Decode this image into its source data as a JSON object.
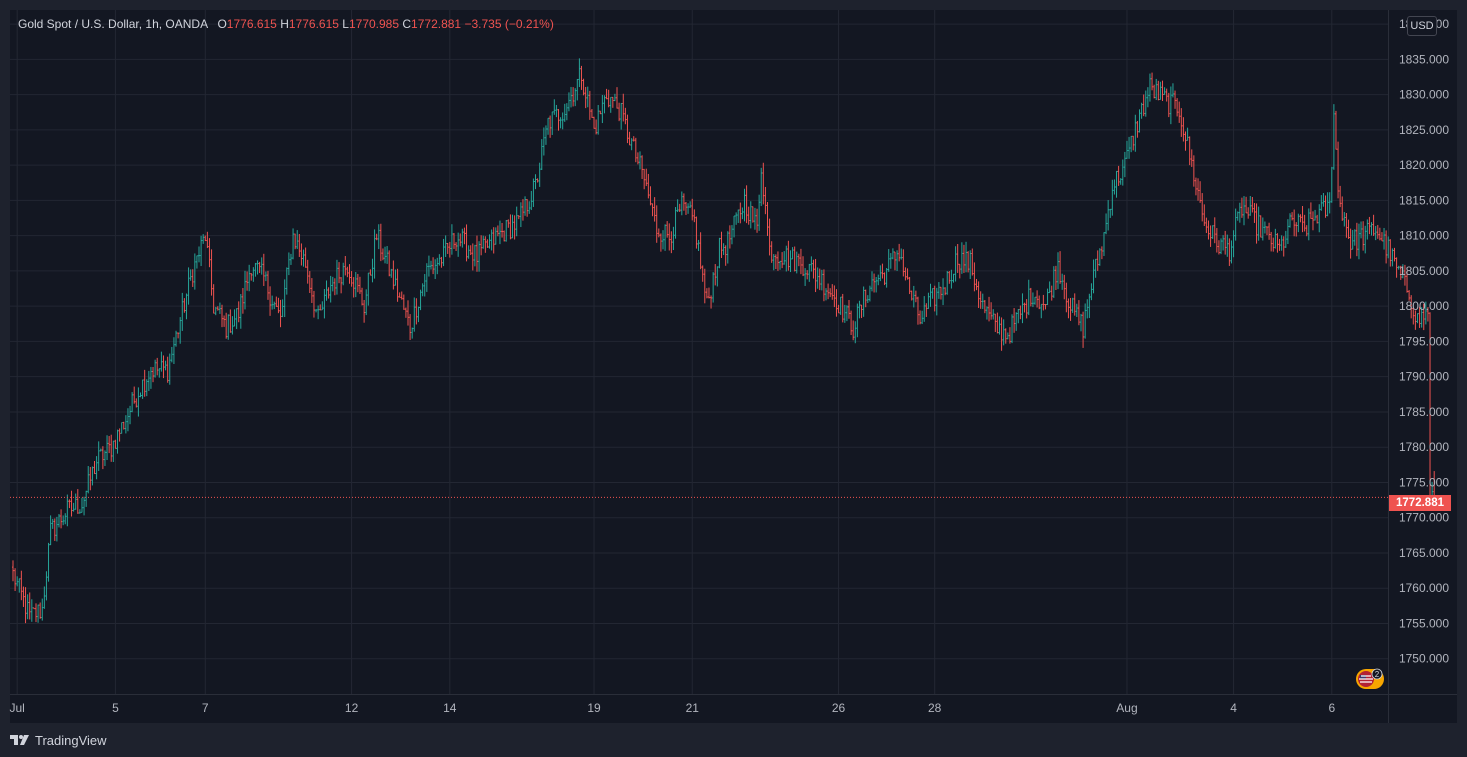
{
  "legend": {
    "symbol": "Gold Spot / U.S. Dollar, 1h, OANDA",
    "o_label": "O",
    "o_value": "1776.615",
    "h_label": "H",
    "h_value": "1776.615",
    "l_label": "L",
    "l_value": "1770.985",
    "c_label": "C",
    "c_value": "1772.881",
    "change": "−3.735 (−0.21%)"
  },
  "currency": "USD",
  "last_price": "1772.881",
  "branding": "TradingView",
  "event_badge_count": "2",
  "colors": {
    "up": "#26a69a",
    "down": "#ef5350",
    "background": "#131722",
    "frame": "#1e222d",
    "grid": "#232733",
    "text": "#b2b5be"
  },
  "chart_data": {
    "type": "ohlc",
    "instrument": "Gold Spot / U.S. Dollar",
    "interval": "1h",
    "source": "OANDA",
    "ylim": [
      1745.0,
      1842.0
    ],
    "y_ticks": [
      "1840.000",
      "1835.000",
      "1830.000",
      "1825.000",
      "1820.000",
      "1815.000",
      "1810.000",
      "1805.000",
      "1800.000",
      "1795.000",
      "1790.000",
      "1785.000",
      "1780.000",
      "1775.000",
      "1770.000",
      "1765.000",
      "1760.000",
      "1755.000",
      "1750.000"
    ],
    "x_ticks": [
      "Jul",
      "5",
      "7",
      "12",
      "14",
      "19",
      "21",
      "26",
      "28",
      "Aug",
      "4",
      "6"
    ],
    "last_price": 1772.881,
    "x_start": "Jun 29",
    "bars_per_day": 23,
    "anchors": [
      [
        0,
        1762
      ],
      [
        8,
        1756
      ],
      [
        14,
        1757
      ],
      [
        18,
        1768
      ],
      [
        26,
        1771
      ],
      [
        33,
        1772
      ],
      [
        40,
        1778
      ],
      [
        47,
        1780
      ],
      [
        54,
        1784
      ],
      [
        60,
        1788
      ],
      [
        66,
        1791
      ],
      [
        74,
        1791
      ],
      [
        80,
        1798
      ],
      [
        86,
        1805
      ],
      [
        92,
        1810
      ],
      [
        96,
        1800
      ],
      [
        102,
        1797
      ],
      [
        108,
        1799
      ],
      [
        114,
        1806
      ],
      [
        120,
        1804
      ],
      [
        128,
        1798
      ],
      [
        134,
        1810
      ],
      [
        140,
        1806
      ],
      [
        146,
        1798
      ],
      [
        152,
        1803
      ],
      [
        160,
        1806
      ],
      [
        168,
        1800
      ],
      [
        174,
        1810
      ],
      [
        184,
        1802
      ],
      [
        190,
        1797
      ],
      [
        198,
        1805
      ],
      [
        206,
        1807
      ],
      [
        212,
        1810
      ],
      [
        222,
        1807
      ],
      [
        232,
        1810
      ],
      [
        242,
        1812
      ],
      [
        250,
        1817
      ],
      [
        256,
        1826
      ],
      [
        264,
        1828
      ],
      [
        272,
        1833
      ],
      [
        278,
        1825
      ],
      [
        284,
        1830
      ],
      [
        290,
        1828
      ],
      [
        296,
        1823
      ],
      [
        302,
        1818
      ],
      [
        308,
        1811
      ],
      [
        314,
        1810
      ],
      [
        320,
        1814
      ],
      [
        326,
        1812
      ],
      [
        332,
        1800
      ],
      [
        338,
        1808
      ],
      [
        342,
        1809
      ],
      [
        350,
        1815
      ],
      [
        356,
        1811
      ],
      [
        358,
        1820
      ],
      [
        362,
        1808
      ],
      [
        370,
        1807
      ],
      [
        378,
        1806
      ],
      [
        386,
        1804
      ],
      [
        394,
        1801
      ],
      [
        402,
        1797
      ],
      [
        410,
        1803
      ],
      [
        418,
        1805
      ],
      [
        424,
        1808
      ],
      [
        428,
        1803
      ],
      [
        434,
        1798
      ],
      [
        440,
        1801
      ],
      [
        446,
        1803
      ],
      [
        452,
        1807
      ],
      [
        458,
        1806
      ],
      [
        464,
        1800
      ],
      [
        470,
        1797
      ],
      [
        476,
        1796
      ],
      [
        482,
        1799
      ],
      [
        488,
        1802
      ],
      [
        494,
        1800
      ],
      [
        500,
        1806
      ],
      [
        506,
        1800
      ],
      [
        512,
        1797
      ],
      [
        516,
        1803
      ],
      [
        522,
        1810
      ],
      [
        526,
        1817
      ],
      [
        532,
        1820
      ],
      [
        538,
        1826
      ],
      [
        544,
        1831
      ],
      [
        552,
        1829
      ],
      [
        558,
        1828
      ],
      [
        564,
        1820
      ],
      [
        570,
        1812
      ],
      [
        576,
        1809
      ],
      [
        582,
        1808
      ],
      [
        588,
        1814
      ],
      [
        594,
        1812
      ],
      [
        600,
        1810
      ],
      [
        606,
        1808
      ],
      [
        612,
        1812
      ],
      [
        618,
        1811
      ],
      [
        624,
        1813
      ],
      [
        630,
        1814
      ],
      [
        632,
        1828
      ],
      [
        634,
        1816
      ],
      [
        640,
        1809
      ],
      [
        646,
        1810
      ],
      [
        652,
        1811
      ],
      [
        658,
        1808
      ],
      [
        664,
        1804
      ],
      [
        668,
        1802
      ],
      [
        672,
        1798
      ],
      [
        677,
        1799
      ],
      [
        678,
        1773
      ],
      [
        680,
        1772.881
      ]
    ]
  }
}
